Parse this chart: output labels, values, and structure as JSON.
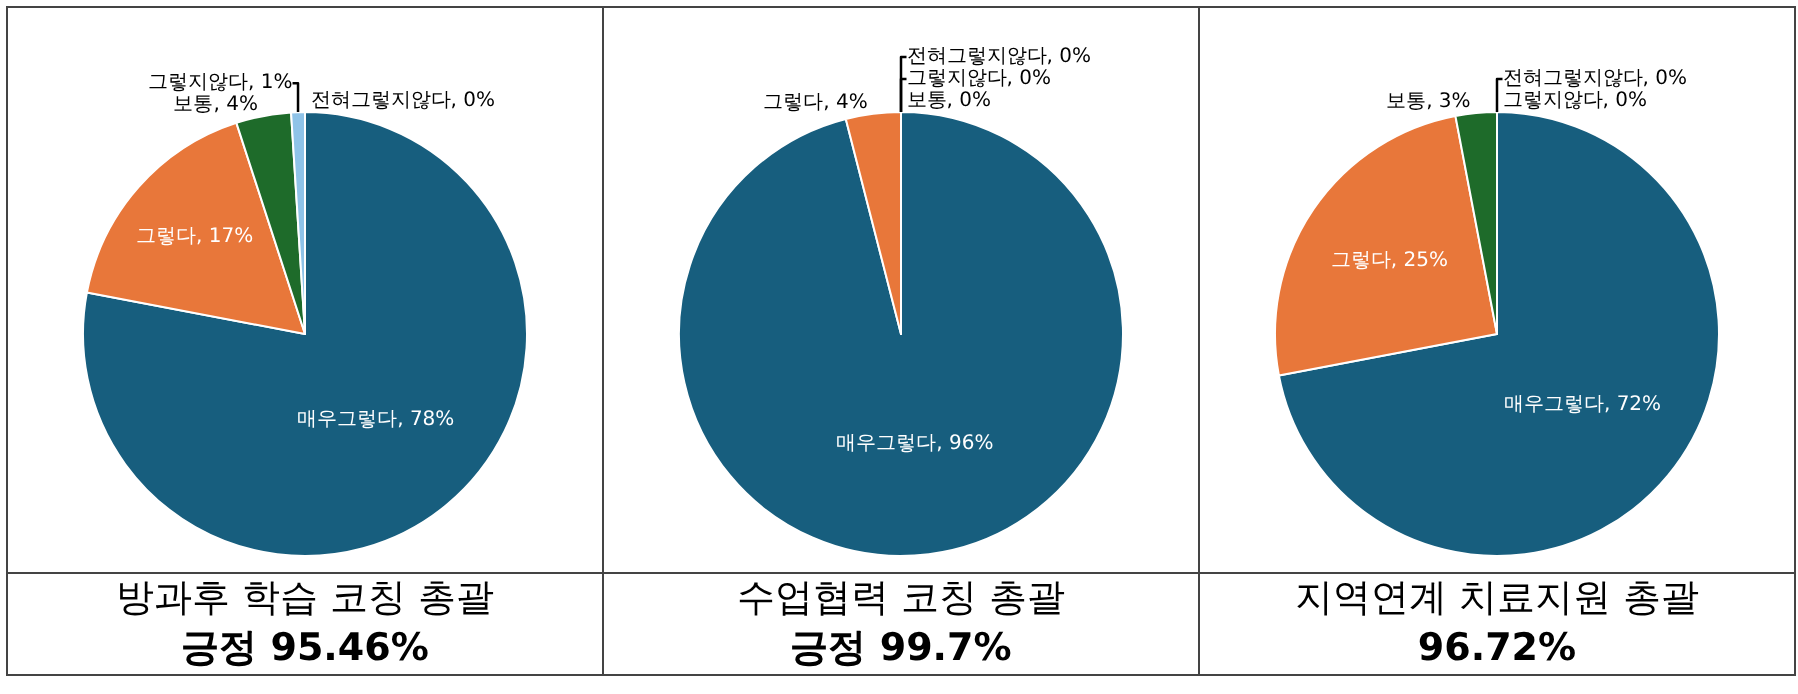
{
  "chart_data": [
    {
      "type": "pie",
      "title": "방과후 학습 코칭 총괄",
      "subtitle": "긍정 95.46%",
      "categories": [
        "매우그렇다",
        "그렇다",
        "보통",
        "그렇지않다",
        "전혀그렇지않다"
      ],
      "values": [
        78,
        17,
        4,
        1,
        0
      ],
      "value_labels": [
        ", 78%",
        ", 17%",
        ", 4%",
        ", 1%",
        ", 0%"
      ],
      "colors": [
        "#175e7e",
        "#e8773a",
        "#1e6b2a",
        "#8fc3e8",
        "#2f7fb5"
      ]
    },
    {
      "type": "pie",
      "title": "수업협력 코칭 총괄",
      "subtitle": "긍정 99.7%",
      "categories": [
        "매우그렇다",
        "그렇다",
        "보통",
        "그렇지않다",
        "전혀그렇지않다"
      ],
      "values": [
        96,
        4,
        0,
        0,
        0
      ],
      "value_labels": [
        ", 96%",
        ", 4%",
        ", 0%",
        ", 0%",
        ", 0%"
      ],
      "colors": [
        "#175e7e",
        "#e8773a",
        "#1e6b2a",
        "#8fc3e8",
        "#2f7fb5"
      ]
    },
    {
      "type": "pie",
      "title": "지역연계 치료지원 총괄",
      "subtitle": "96.72%",
      "categories": [
        "매우그렇다",
        "그렇다",
        "보통",
        "그렇지않다",
        "전혀그렇지않다"
      ],
      "values": [
        72,
        25,
        3,
        0,
        0
      ],
      "value_labels": [
        ", 72%",
        ", 25%",
        ", 3%",
        ", 0%",
        ", 0%"
      ],
      "colors": [
        "#175e7e",
        "#e8773a",
        "#1e6b2a",
        "#8fc3e8",
        "#2f7fb5"
      ]
    }
  ]
}
